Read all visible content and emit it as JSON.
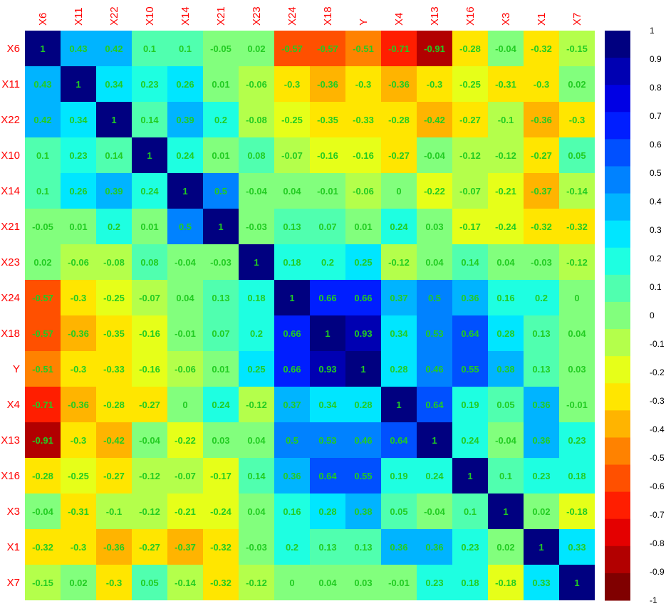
{
  "chart_data": {
    "type": "heatmap",
    "title": "",
    "variables": [
      "X6",
      "X11",
      "X22",
      "X10",
      "X14",
      "X21",
      "X23",
      "X24",
      "X18",
      "Y",
      "X4",
      "X13",
      "X16",
      "X3",
      "X1",
      "X7"
    ],
    "matrix": [
      [
        1,
        0.43,
        0.42,
        0.1,
        0.1,
        -0.05,
        0.02,
        -0.57,
        -0.57,
        -0.51,
        -0.71,
        -0.91,
        -0.28,
        -0.04,
        -0.32,
        -0.15
      ],
      [
        0.43,
        1,
        0.34,
        0.23,
        0.26,
        0.01,
        -0.06,
        -0.3,
        -0.36,
        -0.3,
        -0.36,
        -0.3,
        -0.25,
        -0.31,
        -0.3,
        0.02
      ],
      [
        0.42,
        0.34,
        1,
        0.14,
        0.39,
        0.2,
        -0.08,
        -0.25,
        -0.35,
        -0.33,
        -0.28,
        -0.42,
        -0.27,
        -0.1,
        -0.36,
        -0.3
      ],
      [
        0.1,
        0.23,
        0.14,
        1,
        0.24,
        0.01,
        0.08,
        -0.07,
        -0.16,
        -0.16,
        -0.27,
        -0.04,
        -0.12,
        -0.12,
        -0.27,
        0.05
      ],
      [
        0.1,
        0.26,
        0.39,
        0.24,
        1,
        0.5,
        -0.04,
        0.04,
        -0.01,
        -0.06,
        0,
        -0.22,
        -0.07,
        -0.21,
        -0.37,
        -0.14
      ],
      [
        -0.05,
        0.01,
        0.2,
        0.01,
        0.5,
        1,
        -0.03,
        0.13,
        0.07,
        0.01,
        0.24,
        0.03,
        -0.17,
        -0.24,
        -0.32,
        -0.32
      ],
      [
        0.02,
        -0.06,
        -0.08,
        0.08,
        -0.04,
        -0.03,
        1,
        0.18,
        0.2,
        0.25,
        -0.12,
        0.04,
        0.14,
        0.04,
        -0.03,
        -0.12
      ],
      [
        -0.57,
        -0.3,
        -0.25,
        -0.07,
        0.04,
        0.13,
        0.18,
        1,
        0.66,
        0.66,
        0.37,
        0.5,
        0.36,
        0.16,
        0.2,
        0
      ],
      [
        -0.57,
        -0.36,
        -0.35,
        -0.16,
        -0.01,
        0.07,
        0.2,
        0.66,
        1,
        0.93,
        0.34,
        0.53,
        0.64,
        0.28,
        0.13,
        0.04
      ],
      [
        -0.51,
        -0.3,
        -0.33,
        -0.16,
        -0.06,
        0.01,
        0.25,
        0.66,
        0.93,
        1,
        0.28,
        0.46,
        0.55,
        0.38,
        0.13,
        0.03
      ],
      [
        -0.71,
        -0.36,
        -0.28,
        -0.27,
        0,
        0.24,
        -0.12,
        0.37,
        0.34,
        0.28,
        1,
        0.64,
        0.19,
        0.05,
        0.36,
        -0.01
      ],
      [
        -0.91,
        -0.3,
        -0.42,
        -0.04,
        -0.22,
        0.03,
        0.04,
        0.5,
        0.53,
        0.46,
        0.64,
        1,
        0.24,
        -0.04,
        0.36,
        0.23
      ],
      [
        -0.28,
        -0.25,
        -0.27,
        -0.12,
        -0.07,
        -0.17,
        0.14,
        0.36,
        0.64,
        0.55,
        0.19,
        0.24,
        1,
        0.1,
        0.23,
        0.18
      ],
      [
        -0.04,
        -0.31,
        -0.1,
        -0.12,
        -0.21,
        -0.24,
        0.04,
        0.16,
        0.28,
        0.38,
        0.05,
        -0.04,
        0.1,
        1,
        0.02,
        -0.18
      ],
      [
        -0.32,
        -0.3,
        -0.36,
        -0.27,
        -0.37,
        -0.32,
        -0.03,
        0.2,
        0.13,
        0.13,
        0.36,
        0.36,
        0.23,
        0.02,
        1,
        0.33
      ],
      [
        -0.15,
        0.02,
        -0.3,
        0.05,
        -0.14,
        -0.32,
        -0.12,
        0,
        0.04,
        0.03,
        -0.01,
        0.23,
        0.18,
        -0.18,
        0.33,
        1
      ]
    ],
    "value_range": [
      -1,
      1
    ],
    "legend": {
      "position": "right",
      "ticks": [
        "1",
        "0.9",
        "0.8",
        "0.7",
        "0.6",
        "0.5",
        "0.4",
        "0.3",
        "0.2",
        "0.1",
        "0",
        "-0.1",
        "-0.2",
        "-0.3",
        "-0.4",
        "-0.5",
        "-0.6",
        "-0.7",
        "-0.8",
        "-0.9",
        "-1"
      ]
    },
    "colors": {
      "palette": [
        "#800000",
        "#B20000",
        "#E40000",
        "#FF1E00",
        "#FF5000",
        "#FF8200",
        "#FFB400",
        "#FFE600",
        "#E6FF19",
        "#B4FF4B",
        "#82FF7D",
        "#50FFAF",
        "#1EFFE1",
        "#00E6FF",
        "#00B4FF",
        "#0082FF",
        "#0050FF",
        "#001EFF",
        "#0000E4",
        "#0000B2",
        "#000080"
      ],
      "axis_label": "#ff0000",
      "cell_text": "#22cc22"
    }
  }
}
